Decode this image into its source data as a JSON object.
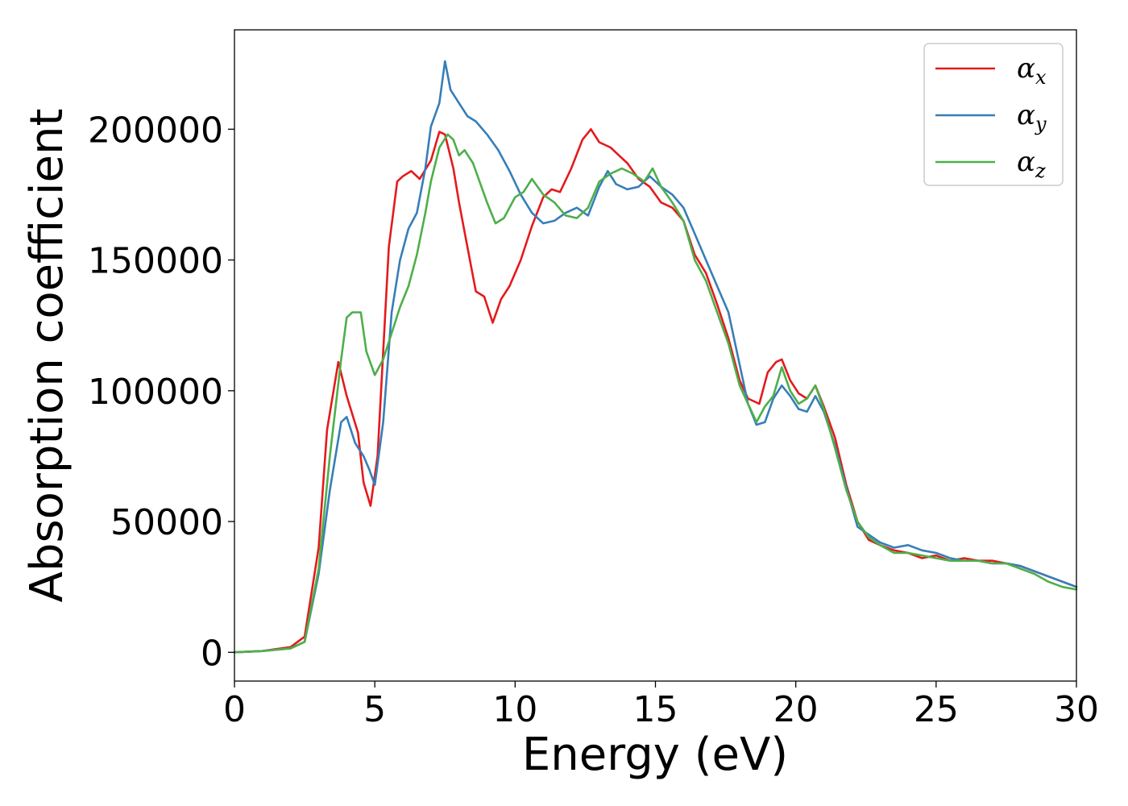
{
  "chart_data": {
    "type": "line",
    "title": "",
    "xlabel": "Energy (eV)",
    "ylabel": "Absorption coefficient",
    "xlim": [
      0,
      30
    ],
    "ylim": [
      -11000,
      238000
    ],
    "xticks": [
      0,
      5,
      10,
      15,
      20,
      25,
      30
    ],
    "yticks": [
      0,
      50000,
      100000,
      150000,
      200000
    ],
    "grid": false,
    "legend_position": "top-right",
    "series": [
      {
        "name": "α",
        "subscript": "x",
        "color": "#e41a1c",
        "x": [
          0,
          1,
          2,
          2.5,
          3,
          3.3,
          3.7,
          4.0,
          4.4,
          4.6,
          4.85,
          5.1,
          5.5,
          5.8,
          6.0,
          6.3,
          6.6,
          7.0,
          7.3,
          7.5,
          7.8,
          8.0,
          8.3,
          8.6,
          8.9,
          9.2,
          9.5,
          9.8,
          10.2,
          10.6,
          11.0,
          11.3,
          11.6,
          12.0,
          12.4,
          12.7,
          13.0,
          13.4,
          13.7,
          14.0,
          14.4,
          14.8,
          15.2,
          15.6,
          16.0,
          16.4,
          16.8,
          17.2,
          17.6,
          18.0,
          18.3,
          18.7,
          19.0,
          19.3,
          19.5,
          19.8,
          20.1,
          20.4,
          20.7,
          21.0,
          21.4,
          21.8,
          22.2,
          22.6,
          23.0,
          23.5,
          24.0,
          24.5,
          25.0,
          25.5,
          26.0,
          26.5,
          27.0,
          27.5,
          28.0,
          28.5,
          29.0,
          29.5,
          30.0
        ],
        "y": [
          0,
          500,
          2000,
          6000,
          40000,
          85000,
          111000,
          98000,
          84000,
          65000,
          56000,
          75000,
          155000,
          180000,
          182000,
          184000,
          181000,
          188000,
          199000,
          198000,
          185000,
          172000,
          155000,
          138000,
          136000,
          126000,
          135000,
          140000,
          150000,
          163000,
          174000,
          177000,
          176000,
          185000,
          196000,
          200000,
          195000,
          193000,
          190000,
          187000,
          181000,
          178000,
          172000,
          170000,
          165000,
          152000,
          145000,
          133000,
          120000,
          104000,
          97000,
          95000,
          107000,
          111000,
          112000,
          104000,
          99000,
          97000,
          102000,
          94000,
          82000,
          64000,
          50000,
          43000,
          41000,
          39000,
          38000,
          36000,
          37000,
          35000,
          36000,
          35000,
          35000,
          34000,
          33000,
          31000,
          29000,
          27000,
          25000
        ]
      },
      {
        "name": "α",
        "subscript": "y",
        "color": "#377eb8",
        "x": [
          0,
          1,
          2,
          2.5,
          3,
          3.4,
          3.8,
          4.0,
          4.3,
          4.6,
          4.8,
          5.0,
          5.3,
          5.6,
          5.9,
          6.2,
          6.5,
          6.8,
          7.0,
          7.3,
          7.5,
          7.7,
          8.0,
          8.3,
          8.6,
          9.0,
          9.4,
          9.8,
          10.2,
          10.6,
          11.0,
          11.4,
          11.8,
          12.2,
          12.6,
          13.0,
          13.3,
          13.6,
          14.0,
          14.4,
          14.8,
          15.2,
          15.6,
          16.0,
          16.4,
          16.8,
          17.2,
          17.6,
          18.0,
          18.3,
          18.6,
          18.9,
          19.2,
          19.5,
          19.8,
          20.1,
          20.4,
          20.7,
          21.0,
          21.4,
          21.8,
          22.2,
          22.6,
          23.0,
          23.5,
          24.0,
          24.5,
          25.0,
          25.5,
          26.0,
          26.5,
          27.0,
          27.5,
          28.0,
          28.5,
          29.0,
          29.5,
          30.0
        ],
        "y": [
          0,
          500,
          1500,
          4000,
          30000,
          62000,
          88000,
          90000,
          80000,
          75000,
          70000,
          64000,
          88000,
          130000,
          150000,
          162000,
          168000,
          185000,
          201000,
          210000,
          226000,
          215000,
          210000,
          205000,
          203000,
          198000,
          192000,
          184000,
          175000,
          168000,
          164000,
          165000,
          168000,
          170000,
          167000,
          178000,
          184000,
          179000,
          177000,
          178000,
          182000,
          178000,
          175000,
          170000,
          160000,
          150000,
          140000,
          130000,
          110000,
          95000,
          87000,
          88000,
          97000,
          102000,
          98000,
          93000,
          92000,
          98000,
          92000,
          79000,
          63000,
          48000,
          45000,
          42000,
          40000,
          41000,
          39000,
          38000,
          36000,
          35000,
          35000,
          34000,
          34000,
          33000,
          31000,
          29000,
          27000,
          25000
        ]
      },
      {
        "name": "α",
        "subscript": "z",
        "color": "#4daf4a",
        "x": [
          0,
          1,
          2,
          2.5,
          3,
          3.4,
          3.8,
          4.0,
          4.2,
          4.5,
          4.7,
          5.0,
          5.3,
          5.6,
          5.9,
          6.2,
          6.5,
          6.8,
          7.0,
          7.3,
          7.6,
          7.8,
          8.0,
          8.2,
          8.5,
          8.8,
          9.0,
          9.3,
          9.6,
          10.0,
          10.3,
          10.6,
          11.0,
          11.4,
          11.8,
          12.2,
          12.6,
          13.0,
          13.4,
          13.8,
          14.2,
          14.6,
          14.9,
          15.2,
          15.6,
          16.0,
          16.4,
          16.8,
          17.2,
          17.6,
          18.0,
          18.3,
          18.6,
          18.9,
          19.2,
          19.5,
          19.8,
          20.1,
          20.4,
          20.7,
          21.0,
          21.4,
          21.8,
          22.2,
          22.6,
          23.0,
          23.5,
          24.0,
          24.5,
          25.0,
          25.5,
          26.0,
          26.5,
          27.0,
          27.5,
          28.0,
          28.5,
          29.0,
          29.5,
          30.0
        ],
        "y": [
          0,
          500,
          1500,
          4000,
          32000,
          75000,
          112000,
          128000,
          130000,
          130000,
          115000,
          106000,
          112000,
          122000,
          132000,
          140000,
          152000,
          168000,
          180000,
          193000,
          198000,
          196000,
          190000,
          192000,
          187000,
          178000,
          172000,
          164000,
          166000,
          174000,
          176000,
          181000,
          175000,
          172000,
          167000,
          166000,
          170000,
          180000,
          183000,
          185000,
          183000,
          180000,
          185000,
          178000,
          172000,
          165000,
          150000,
          142000,
          130000,
          118000,
          102000,
          95000,
          88000,
          94000,
          98000,
          109000,
          100000,
          95000,
          97000,
          102000,
          93000,
          78000,
          62000,
          50000,
          44000,
          41000,
          38000,
          38000,
          37000,
          36000,
          35000,
          35000,
          35000,
          34000,
          34000,
          32000,
          30000,
          27000,
          25000,
          24000
        ]
      }
    ]
  }
}
